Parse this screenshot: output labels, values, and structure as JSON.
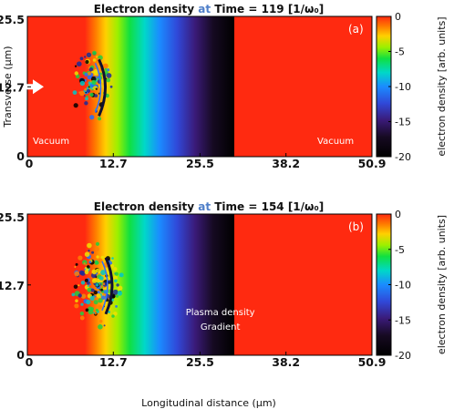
{
  "chart_data": [
    {
      "type": "heatmap",
      "panel_label": "(a)",
      "title": {
        "prefix": "Electron density",
        "highlight": "at",
        "suffix": "Time = 119  [1/ω₀]"
      },
      "xlabel": "",
      "ylabel": "Transverse (μm)",
      "x_ticks": [
        "0",
        "12.7",
        "25.5",
        "38.2",
        "50.9"
      ],
      "y_ticks": [
        "0",
        "12.7",
        "25.5"
      ],
      "xlim": [
        0,
        50.9
      ],
      "ylim": [
        0,
        25.5
      ],
      "density_profile": {
        "ramp_start": 8.5,
        "ramp_end": 30.5
      },
      "annotations": [
        "Vacuum",
        "Vacuum"
      ],
      "arrow": true,
      "colorbar": {
        "label": "electron density [arb. units]",
        "ticks": [
          "0",
          "-5",
          "-10",
          "-15",
          "-20"
        ],
        "range": [
          -20,
          0
        ]
      }
    },
    {
      "type": "heatmap",
      "panel_label": "(b)",
      "title": {
        "prefix": "Electron density",
        "highlight": "at",
        "suffix": "Time = 154  [1/ω₀]"
      },
      "xlabel": "Longitudinal distance (μm)",
      "ylabel": "",
      "x_ticks": [
        "0",
        "12.7",
        "25.5",
        "38.2",
        "50.9"
      ],
      "y_ticks": [
        "0",
        "12.7",
        "25.5"
      ],
      "xlim": [
        0,
        50.9
      ],
      "ylim": [
        0,
        25.5
      ],
      "density_profile": {
        "ramp_start": 8.5,
        "ramp_end": 30.5
      },
      "annotations": [
        "Plasma density",
        "Gradient"
      ],
      "colorbar": {
        "label": "electron density [arb. units]",
        "ticks": [
          "0",
          "-5",
          "-10",
          "-15",
          "-20"
        ],
        "range": [
          -20,
          0
        ]
      }
    }
  ]
}
